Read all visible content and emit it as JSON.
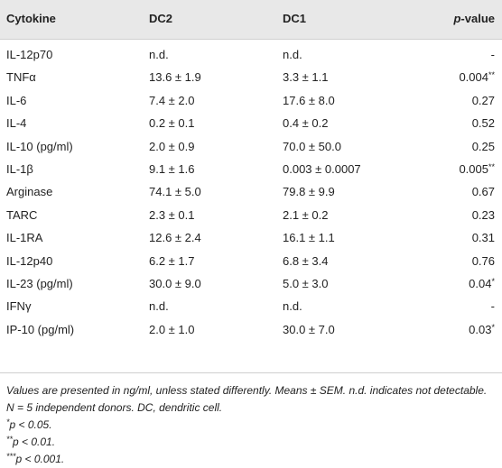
{
  "table": {
    "header": [
      "Cytokine",
      "DC2",
      "DC1",
      {
        "italic": "p",
        "text": "-value"
      }
    ],
    "rows": [
      [
        "IL-12p70",
        "n.d.",
        "n.d.",
        {
          "value": "-",
          "note": ""
        }
      ],
      [
        "TNFα",
        "13.6 ± 1.9",
        "3.3 ± 1.1",
        {
          "value": "0.004",
          "note": "**"
        }
      ],
      [
        "IL-6",
        "7.4 ± 2.0",
        "17.6 ± 8.0",
        {
          "value": "0.27",
          "note": ""
        }
      ],
      [
        "IL-4",
        "0.2 ± 0.1",
        "0.4 ± 0.2",
        {
          "value": "0.52",
          "note": ""
        }
      ],
      [
        "IL-10 (pg/ml)",
        "2.0 ± 0.9",
        "70.0 ± 50.0",
        {
          "value": "0.25",
          "note": ""
        }
      ],
      [
        "IL-1β",
        "9.1 ± 1.6",
        "0.003 ± 0.0007",
        {
          "value": "0.005",
          "note": "**"
        }
      ],
      [
        "Arginase",
        "74.1 ± 5.0",
        "79.8 ± 9.9",
        {
          "value": "0.67",
          "note": ""
        }
      ],
      [
        "TARC",
        "2.3 ± 0.1",
        "2.1 ± 0.2",
        {
          "value": "0.23",
          "note": ""
        }
      ],
      [
        "IL-1RA",
        "12.6 ± 2.4",
        "16.1 ± 1.1",
        {
          "value": "0.31",
          "note": ""
        }
      ],
      [
        "IL-12p40",
        "6.2 ± 1.7",
        "6.8 ± 3.4",
        {
          "value": "0.76",
          "note": ""
        }
      ],
      [
        "IL-23 (pg/ml)",
        "30.0 ± 9.0",
        "5.0 ± 3.0",
        {
          "value": "0.04",
          "note": "*"
        }
      ],
      [
        "IFNγ",
        "n.d.",
        "n.d.",
        {
          "value": "-",
          "note": ""
        }
      ],
      [
        "IP-10 (pg/ml)",
        "2.0 ± 1.0",
        "30.0 ± 7.0",
        {
          "value": "0.03",
          "note": "*"
        }
      ]
    ]
  },
  "footnotes": {
    "general": "Values are presented in ng/ml, unless stated differently. Means ± SEM. n.d. indicates not detectable. N = 5 independent donors. DC, dendritic cell.",
    "items": [
      {
        "mark": "*",
        "text": "p < 0.05."
      },
      {
        "mark": "**",
        "text": "p < 0.01."
      },
      {
        "mark": "***",
        "text": "p < 0.001."
      }
    ]
  }
}
